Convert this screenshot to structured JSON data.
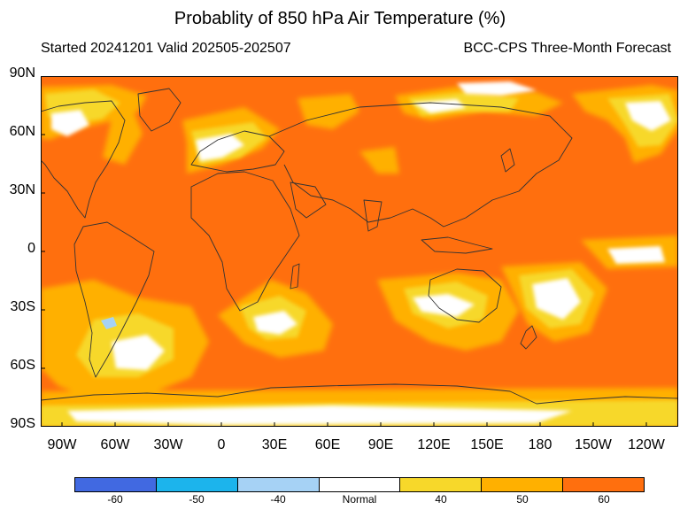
{
  "title": "Probablity of 850 hPa Air Temperature (%)",
  "subtitle_left": "Started 20241201  Valid 202505-202507",
  "subtitle_right": "BCC-CPS Three-Month Forecast",
  "lat_labels": [
    "90N",
    "60N",
    "30N",
    "0",
    "30S",
    "60S",
    "90S"
  ],
  "lon_labels": [
    "90W",
    "60W",
    "30W",
    "0",
    "30E",
    "60E",
    "90E",
    "120E",
    "150E",
    "180",
    "150W",
    "120W"
  ],
  "legend": {
    "colors": [
      "#4169e1",
      "#1cb4ec",
      "#a6d2f5",
      "#ffffff",
      "#f7d82a",
      "#ffb000",
      "#ff6f0e"
    ],
    "labels": [
      "-60",
      "-50",
      "-40",
      "Normal",
      "40",
      "50",
      "60"
    ]
  },
  "map_colors": {
    "dominant": "#ff6f0e",
    "secondary": "#ffb000",
    "tertiary": "#f7d82a",
    "normal": "#ffffff",
    "cold": "#a6d2f5",
    "coast": "#333333"
  }
}
